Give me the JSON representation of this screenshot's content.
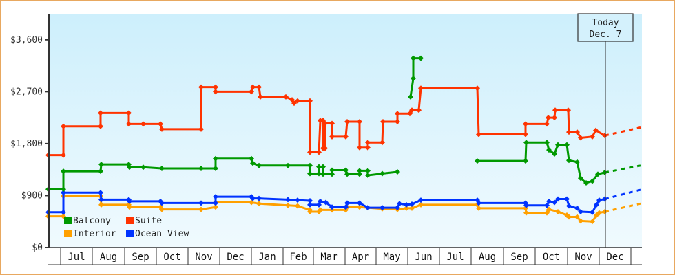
{
  "chart_data": {
    "type": "line",
    "title": "",
    "xlabel": "",
    "ylabel": "",
    "ylim": [
      0,
      4050
    ],
    "y_ticks": [
      {
        "value": 0,
        "label": "$0"
      },
      {
        "value": 900,
        "label": "$900"
      },
      {
        "value": 1800,
        "label": "$1,800"
      },
      {
        "value": 2700,
        "label": "$2,700"
      },
      {
        "value": 3600,
        "label": "$3,600"
      }
    ],
    "months": [
      "Jul",
      "Aug",
      "Sep",
      "Oct",
      "Nov",
      "Dec",
      "Jan",
      "Feb",
      "Mar",
      "Apr",
      "May",
      "Jun",
      "Jul",
      "Aug",
      "Sep",
      "Oct",
      "Nov",
      "Dec"
    ],
    "today": {
      "line1": "Today",
      "line2": "Dec. 7"
    },
    "legend": [
      {
        "name": "Balcony",
        "color": "#009900"
      },
      {
        "name": "Suite",
        "color": "#ff3300"
      },
      {
        "name": "Interior",
        "color": "#ffa000"
      },
      {
        "name": "Ocean View",
        "color": "#0033ff"
      }
    ],
    "series": [
      {
        "name": "Suite",
        "color": "#ff3300",
        "points": [
          [
            70,
            1600
          ],
          [
            92,
            1600
          ],
          [
            92,
            2100
          ],
          [
            146,
            2100
          ],
          [
            146,
            2330
          ],
          [
            187,
            2330
          ],
          [
            187,
            2140
          ],
          [
            208,
            2140
          ],
          [
            233,
            2140
          ],
          [
            235,
            2050
          ],
          [
            292,
            2050
          ],
          [
            292,
            2780
          ],
          [
            313,
            2780
          ],
          [
            313,
            2700
          ],
          [
            365,
            2700
          ],
          [
            367,
            2780
          ],
          [
            376,
            2780
          ],
          [
            378,
            2610
          ],
          [
            415,
            2610
          ],
          [
            424,
            2560
          ],
          [
            427,
            2500
          ],
          [
            432,
            2540
          ],
          [
            450,
            2540
          ],
          [
            450,
            1650
          ],
          [
            463,
            1650
          ],
          [
            465,
            2200
          ],
          [
            469,
            2200
          ],
          [
            469,
            1720
          ],
          [
            472,
            1720
          ],
          [
            472,
            2150
          ],
          [
            482,
            2150
          ],
          [
            482,
            1920
          ],
          [
            502,
            1920
          ],
          [
            504,
            2180
          ],
          [
            522,
            2180
          ],
          [
            522,
            1730
          ],
          [
            534,
            1730
          ],
          [
            534,
            1820
          ],
          [
            555,
            1820
          ],
          [
            556,
            2180
          ],
          [
            577,
            2180
          ],
          [
            577,
            2320
          ],
          [
            595,
            2320
          ],
          [
            598,
            2380
          ],
          [
            608,
            2380
          ],
          [
            611,
            2760
          ],
          [
            693,
            2760
          ],
          [
            695,
            1960
          ],
          [
            763,
            1960
          ],
          [
            763,
            2140
          ],
          [
            794,
            2140
          ],
          [
            796,
            2250
          ],
          [
            805,
            2250
          ],
          [
            806,
            2380
          ],
          [
            825,
            2380
          ],
          [
            826,
            2000
          ],
          [
            838,
            2000
          ],
          [
            843,
            1900
          ],
          [
            860,
            1920
          ],
          [
            865,
            2030
          ],
          [
            878,
            1940
          ]
        ],
        "projection": [
          [
            878,
            1940
          ],
          [
            930,
            2080
          ]
        ]
      },
      {
        "name": "Balcony",
        "color": "#009900",
        "points": [
          [
            70,
            1010
          ],
          [
            92,
            1010
          ],
          [
            92,
            1320
          ],
          [
            146,
            1320
          ],
          [
            147,
            1440
          ],
          [
            187,
            1440
          ],
          [
            188,
            1390
          ],
          [
            208,
            1390
          ],
          [
            235,
            1370
          ],
          [
            292,
            1370
          ],
          [
            313,
            1370
          ],
          [
            313,
            1540
          ],
          [
            365,
            1540
          ],
          [
            367,
            1460
          ],
          [
            376,
            1420
          ],
          [
            418,
            1420
          ],
          [
            450,
            1420
          ],
          [
            450,
            1280
          ],
          [
            463,
            1280
          ],
          [
            463,
            1400
          ],
          [
            469,
            1400
          ],
          [
            469,
            1270
          ],
          [
            482,
            1270
          ],
          [
            482,
            1340
          ],
          [
            502,
            1340
          ],
          [
            504,
            1270
          ],
          [
            522,
            1270
          ],
          [
            522,
            1330
          ],
          [
            534,
            1330
          ],
          [
            534,
            1250
          ],
          [
            555,
            1280
          ],
          [
            577,
            1310
          ]
        ],
        "projection": null
      },
      {
        "name": "Balcony-spike",
        "color": "#009900",
        "points": [
          [
            596,
            2610
          ],
          [
            600,
            2930
          ],
          [
            600,
            3280
          ],
          [
            611,
            3280
          ]
        ],
        "projection": null
      },
      {
        "name": "Balcony-late",
        "color": "#009900",
        "points": [
          [
            693,
            1500
          ],
          [
            763,
            1500
          ],
          [
            764,
            1820
          ],
          [
            794,
            1820
          ],
          [
            797,
            1690
          ],
          [
            805,
            1620
          ],
          [
            810,
            1780
          ],
          [
            823,
            1780
          ],
          [
            826,
            1510
          ],
          [
            838,
            1480
          ],
          [
            843,
            1200
          ],
          [
            851,
            1120
          ],
          [
            860,
            1150
          ],
          [
            868,
            1270
          ],
          [
            878,
            1300
          ]
        ],
        "projection": [
          [
            878,
            1300
          ],
          [
            930,
            1420
          ]
        ]
      },
      {
        "name": "Ocean View",
        "color": "#0033ff",
        "points": [
          [
            70,
            610
          ],
          [
            92,
            610
          ],
          [
            92,
            950
          ],
          [
            146,
            950
          ],
          [
            147,
            830
          ],
          [
            187,
            830
          ],
          [
            188,
            800
          ],
          [
            233,
            800
          ],
          [
            235,
            770
          ],
          [
            292,
            770
          ],
          [
            313,
            770
          ],
          [
            313,
            880
          ],
          [
            365,
            880
          ],
          [
            367,
            850
          ],
          [
            376,
            850
          ],
          [
            418,
            830
          ],
          [
            432,
            820
          ],
          [
            450,
            810
          ],
          [
            450,
            740
          ],
          [
            463,
            740
          ],
          [
            465,
            800
          ],
          [
            473,
            780
          ],
          [
            482,
            700
          ],
          [
            502,
            700
          ],
          [
            504,
            770
          ],
          [
            522,
            770
          ],
          [
            534,
            690
          ],
          [
            555,
            690
          ],
          [
            577,
            690
          ],
          [
            580,
            760
          ],
          [
            590,
            740
          ],
          [
            598,
            750
          ],
          [
            611,
            820
          ],
          [
            693,
            820
          ],
          [
            695,
            770
          ],
          [
            763,
            770
          ],
          [
            764,
            730
          ],
          [
            794,
            730
          ],
          [
            797,
            800
          ],
          [
            805,
            780
          ],
          [
            810,
            840
          ],
          [
            823,
            840
          ],
          [
            826,
            720
          ],
          [
            838,
            680
          ],
          [
            843,
            620
          ],
          [
            860,
            610
          ],
          [
            866,
            740
          ],
          [
            870,
            820
          ],
          [
            878,
            840
          ]
        ],
        "projection": [
          [
            878,
            840
          ],
          [
            930,
            1000
          ]
        ]
      },
      {
        "name": "Interior",
        "color": "#ffa000",
        "points": [
          [
            70,
            540
          ],
          [
            92,
            540
          ],
          [
            92,
            890
          ],
          [
            146,
            890
          ],
          [
            147,
            740
          ],
          [
            187,
            740
          ],
          [
            188,
            700
          ],
          [
            233,
            700
          ],
          [
            235,
            660
          ],
          [
            292,
            660
          ],
          [
            313,
            700
          ],
          [
            313,
            780
          ],
          [
            365,
            780
          ],
          [
            376,
            760
          ],
          [
            418,
            730
          ],
          [
            432,
            720
          ],
          [
            450,
            650
          ],
          [
            450,
            620
          ],
          [
            463,
            620
          ],
          [
            465,
            650
          ],
          [
            482,
            650
          ],
          [
            502,
            650
          ],
          [
            504,
            700
          ],
          [
            522,
            700
          ],
          [
            534,
            690
          ],
          [
            555,
            670
          ],
          [
            577,
            660
          ],
          [
            590,
            680
          ],
          [
            598,
            680
          ],
          [
            611,
            740
          ],
          [
            693,
            740
          ],
          [
            695,
            680
          ],
          [
            763,
            680
          ],
          [
            764,
            600
          ],
          [
            794,
            600
          ],
          [
            797,
            660
          ],
          [
            810,
            620
          ],
          [
            823,
            560
          ],
          [
            826,
            530
          ],
          [
            838,
            530
          ],
          [
            843,
            460
          ],
          [
            860,
            450
          ],
          [
            866,
            560
          ],
          [
            870,
            600
          ],
          [
            878,
            620
          ]
        ],
        "projection": [
          [
            878,
            620
          ],
          [
            930,
            760
          ]
        ]
      }
    ]
  }
}
